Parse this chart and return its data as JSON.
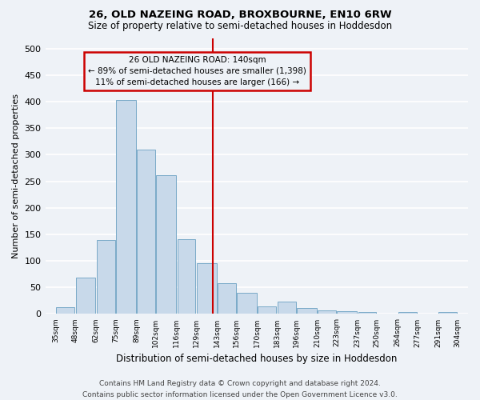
{
  "title": "26, OLD NAZEING ROAD, BROXBOURNE, EN10 6RW",
  "subtitle": "Size of property relative to semi-detached houses in Hoddesdon",
  "xlabel": "Distribution of semi-detached houses by size in Hoddesdon",
  "ylabel": "Number of semi-detached properties",
  "footer1": "Contains HM Land Registry data © Crown copyright and database right 2024.",
  "footer2": "Contains public sector information licensed under the Open Government Licence v3.0.",
  "annotation_line1": "26 OLD NAZEING ROAD: 140sqm",
  "annotation_line2": "← 89% of semi-detached houses are smaller (1,398)",
  "annotation_line3": "11% of semi-detached houses are larger (166) →",
  "bar_color": "#c8d9ea",
  "bar_edge_color": "#7aaac8",
  "property_line_x": 140,
  "bin_edges": [
    35,
    48,
    62,
    75,
    89,
    102,
    116,
    129,
    143,
    156,
    170,
    183,
    196,
    210,
    223,
    237,
    250,
    264,
    277,
    291,
    304
  ],
  "bin_labels": [
    "35sqm",
    "48sqm",
    "62sqm",
    "75sqm",
    "89sqm",
    "102sqm",
    "116sqm",
    "129sqm",
    "143sqm",
    "156sqm",
    "170sqm",
    "183sqm",
    "196sqm",
    "210sqm",
    "223sqm",
    "237sqm",
    "250sqm",
    "264sqm",
    "277sqm",
    "291sqm",
    "304sqm"
  ],
  "counts": [
    12,
    68,
    140,
    403,
    310,
    261,
    141,
    95,
    58,
    40,
    14,
    24,
    11,
    7,
    5,
    4,
    0,
    3,
    0,
    4
  ],
  "ylim": [
    0,
    520
  ],
  "yticks": [
    0,
    50,
    100,
    150,
    200,
    250,
    300,
    350,
    400,
    450,
    500
  ],
  "background_color": "#eef2f7",
  "grid_color": "#ffffff",
  "ann_box_edge_color": "#cc0000",
  "vline_color": "#cc0000"
}
